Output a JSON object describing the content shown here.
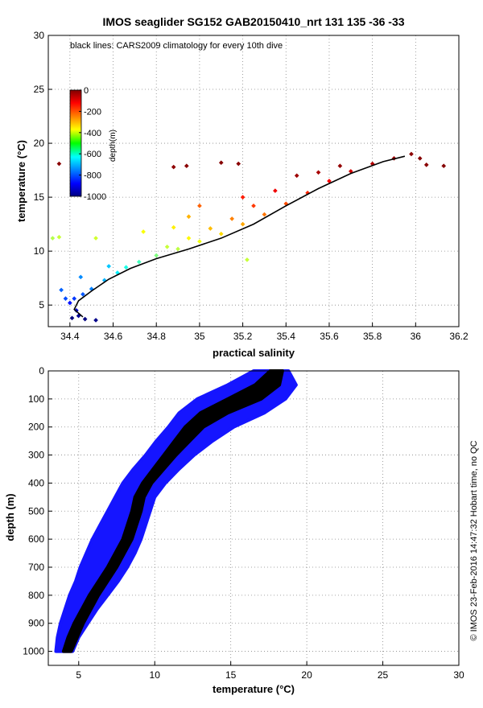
{
  "figure": {
    "title": "IMOS seaglider SG152 GAB20150410_nrt 131  135  -36  -33",
    "footer": "© IMOS 23-Feb-2016 14:47:32 Hobart time, no QC"
  },
  "chart_data": [
    {
      "type": "scatter",
      "title": "IMOS seaglider SG152 GAB20150410_nrt 131  135  -36  -33",
      "annotation": "black lines: CARS2009 climatology for every 10th dive",
      "xlabel": "practical salinity",
      "ylabel": "temperature (°C)",
      "xlim": [
        34.3,
        36.2
      ],
      "ylim": [
        3,
        30
      ],
      "xticks": [
        34.4,
        34.6,
        34.8,
        35,
        35.2,
        35.4,
        35.6,
        35.8,
        36,
        36.2
      ],
      "xtick_labels": [
        "34.4",
        "34.6",
        "34.8",
        "35",
        "35.2",
        "35.4",
        "35.6",
        "35.8",
        "36",
        "36.2"
      ],
      "yticks": [
        5,
        10,
        15,
        20,
        25,
        30
      ],
      "ytick_labels": [
        "5",
        "10",
        "15",
        "20",
        "25",
        "30"
      ],
      "grid": true,
      "colorbar": {
        "label": "depth(m)",
        "ticks": [
          0,
          -200,
          -400,
          -600,
          -800,
          -1000
        ],
        "tick_labels": [
          "0",
          "-200",
          "-400",
          "-600",
          "-800",
          "-1000"
        ],
        "range": [
          -1000,
          0
        ],
        "colormap": "jet",
        "placement": "top-left"
      },
      "series": [
        {
          "name": "",
          "color": "by-depth",
          "points": [
            {
              "s": 34.41,
              "t": 3.8,
              "d": -1000
            },
            {
              "s": 34.44,
              "t": 4.0,
              "d": -980
            },
            {
              "s": 34.47,
              "t": 3.7,
              "d": -1000
            },
            {
              "s": 34.52,
              "t": 3.6,
              "d": -990
            },
            {
              "s": 34.43,
              "t": 4.5,
              "d": -920
            },
            {
              "s": 34.4,
              "t": 5.2,
              "d": -860
            },
            {
              "s": 34.42,
              "t": 5.6,
              "d": -820
            },
            {
              "s": 34.46,
              "t": 6.0,
              "d": -790
            },
            {
              "s": 34.5,
              "t": 6.5,
              "d": -750
            },
            {
              "s": 34.56,
              "t": 7.3,
              "d": -700
            },
            {
              "s": 34.62,
              "t": 8.0,
              "d": -640
            },
            {
              "s": 34.66,
              "t": 8.5,
              "d": -600
            },
            {
              "s": 34.72,
              "t": 9.0,
              "d": -560
            },
            {
              "s": 34.8,
              "t": 9.6,
              "d": -500
            },
            {
              "s": 34.9,
              "t": 10.2,
              "d": -440
            },
            {
              "s": 35.0,
              "t": 10.9,
              "d": -390
            },
            {
              "s": 35.1,
              "t": 11.6,
              "d": -340
            },
            {
              "s": 35.2,
              "t": 12.5,
              "d": -290
            },
            {
              "s": 35.3,
              "t": 13.4,
              "d": -240
            },
            {
              "s": 35.4,
              "t": 14.4,
              "d": -200
            },
            {
              "s": 35.5,
              "t": 15.4,
              "d": -160
            },
            {
              "s": 35.6,
              "t": 16.5,
              "d": -120
            },
            {
              "s": 35.7,
              "t": 17.4,
              "d": -80
            },
            {
              "s": 35.8,
              "t": 18.1,
              "d": -50
            },
            {
              "s": 35.9,
              "t": 18.6,
              "d": -30
            },
            {
              "s": 35.98,
              "t": 19.0,
              "d": -10
            },
            {
              "s": 36.02,
              "t": 18.6,
              "d": -5
            },
            {
              "s": 35.55,
              "t": 17.3,
              "d": -40
            },
            {
              "s": 35.65,
              "t": 17.9,
              "d": -20
            },
            {
              "s": 35.45,
              "t": 17.0,
              "d": -30
            },
            {
              "s": 35.35,
              "t": 15.6,
              "d": -110
            },
            {
              "s": 35.25,
              "t": 14.2,
              "d": -180
            },
            {
              "s": 35.15,
              "t": 13.0,
              "d": -250
            },
            {
              "s": 35.05,
              "t": 12.1,
              "d": -310
            },
            {
              "s": 34.95,
              "t": 11.2,
              "d": -370
            },
            {
              "s": 34.85,
              "t": 10.4,
              "d": -430
            },
            {
              "s": 34.38,
              "t": 5.6,
              "d": -800
            },
            {
              "s": 34.36,
              "t": 6.4,
              "d": -780
            },
            {
              "s": 34.45,
              "t": 7.6,
              "d": -740
            },
            {
              "s": 34.58,
              "t": 8.6,
              "d": -680
            },
            {
              "s": 34.32,
              "t": 11.2,
              "d": -450
            },
            {
              "s": 34.35,
              "t": 11.3,
              "d": -430
            },
            {
              "s": 34.52,
              "t": 11.2,
              "d": -420
            },
            {
              "s": 34.88,
              "t": 12.2,
              "d": -360
            },
            {
              "s": 35.22,
              "t": 9.2,
              "d": -430
            },
            {
              "s": 34.74,
              "t": 11.8,
              "d": -380
            },
            {
              "s": 34.95,
              "t": 13.2,
              "d": -300
            },
            {
              "s": 35.0,
              "t": 14.2,
              "d": -220
            },
            {
              "s": 35.2,
              "t": 15.0,
              "d": -150
            },
            {
              "s": 34.35,
              "t": 18.1,
              "d": -10
            },
            {
              "s": 34.94,
              "t": 17.9,
              "d": -10
            },
            {
              "s": 35.1,
              "t": 18.2,
              "d": -5
            },
            {
              "s": 35.18,
              "t": 18.1,
              "d": -10
            },
            {
              "s": 36.05,
              "t": 18.0,
              "d": -10
            },
            {
              "s": 36.13,
              "t": 17.9,
              "d": -5
            },
            {
              "s": 34.88,
              "t": 17.8,
              "d": -15
            }
          ]
        },
        {
          "name": "",
          "color": "#000000",
          "points": [
            {
              "s": 34.46,
              "t": 3.9
            },
            {
              "s": 34.42,
              "t": 4.6
            },
            {
              "s": 34.44,
              "t": 5.4
            },
            {
              "s": 34.5,
              "t": 6.3
            },
            {
              "s": 34.58,
              "t": 7.4
            },
            {
              "s": 34.68,
              "t": 8.4
            },
            {
              "s": 34.8,
              "t": 9.3
            },
            {
              "s": 34.95,
              "t": 10.2
            },
            {
              "s": 35.1,
              "t": 11.2
            },
            {
              "s": 35.25,
              "t": 12.5
            },
            {
              "s": 35.4,
              "t": 14.2
            },
            {
              "s": 35.55,
              "t": 15.8
            },
            {
              "s": 35.7,
              "t": 17.2
            },
            {
              "s": 35.85,
              "t": 18.3
            },
            {
              "s": 35.95,
              "t": 18.8
            }
          ]
        }
      ]
    },
    {
      "type": "scatter",
      "xlabel": "temperature (°C)",
      "ylabel": "depth (m)",
      "xlim": [
        3,
        30
      ],
      "ylim": [
        1050,
        0
      ],
      "xticks": [
        5,
        10,
        15,
        20,
        25,
        30
      ],
      "xtick_labels": [
        "5",
        "10",
        "15",
        "20",
        "25",
        "30"
      ],
      "yticks": [
        0,
        100,
        200,
        300,
        400,
        500,
        600,
        700,
        800,
        900,
        1000
      ],
      "ytick_labels": [
        "0",
        "100",
        "200",
        "300",
        "400",
        "500",
        "600",
        "700",
        "800",
        "900",
        "1000"
      ],
      "grid": true,
      "series": [
        {
          "name": "",
          "color": "#1515ff",
          "profile_min": [
            {
              "d": 0,
              "t": 16.5
            },
            {
              "d": 50,
              "t": 14.8
            },
            {
              "d": 100,
              "t": 12.8
            },
            {
              "d": 150,
              "t": 11.6
            },
            {
              "d": 200,
              "t": 10.9
            },
            {
              "d": 250,
              "t": 10.1
            },
            {
              "d": 300,
              "t": 9.4
            },
            {
              "d": 350,
              "t": 8.6
            },
            {
              "d": 400,
              "t": 7.9
            },
            {
              "d": 450,
              "t": 7.4
            },
            {
              "d": 500,
              "t": 6.9
            },
            {
              "d": 550,
              "t": 6.4
            },
            {
              "d": 600,
              "t": 5.9
            },
            {
              "d": 650,
              "t": 5.5
            },
            {
              "d": 700,
              "t": 5.1
            },
            {
              "d": 750,
              "t": 4.8
            },
            {
              "d": 800,
              "t": 4.4
            },
            {
              "d": 850,
              "t": 4.1
            },
            {
              "d": 900,
              "t": 3.8
            },
            {
              "d": 950,
              "t": 3.6
            },
            {
              "d": 1000,
              "t": 3.5
            }
          ],
          "profile_max": [
            {
              "d": 0,
              "t": 18.8
            },
            {
              "d": 50,
              "t": 19.3
            },
            {
              "d": 100,
              "t": 18.6
            },
            {
              "d": 150,
              "t": 17.2
            },
            {
              "d": 200,
              "t": 15.2
            },
            {
              "d": 250,
              "t": 13.8
            },
            {
              "d": 300,
              "t": 12.6
            },
            {
              "d": 350,
              "t": 11.6
            },
            {
              "d": 400,
              "t": 10.7
            },
            {
              "d": 450,
              "t": 10.0
            },
            {
              "d": 500,
              "t": 9.7
            },
            {
              "d": 550,
              "t": 9.4
            },
            {
              "d": 600,
              "t": 9.1
            },
            {
              "d": 650,
              "t": 8.7
            },
            {
              "d": 700,
              "t": 8.2
            },
            {
              "d": 750,
              "t": 7.6
            },
            {
              "d": 800,
              "t": 6.9
            },
            {
              "d": 850,
              "t": 6.2
            },
            {
              "d": 900,
              "t": 5.6
            },
            {
              "d": 950,
              "t": 5.0
            },
            {
              "d": 1000,
              "t": 4.6
            }
          ]
        },
        {
          "name": "",
          "color": "#000000",
          "profile_min": [
            {
              "d": 0,
              "t": 17.6
            },
            {
              "d": 50,
              "t": 16.6
            },
            {
              "d": 100,
              "t": 14.8
            },
            {
              "d": 150,
              "t": 13.0
            },
            {
              "d": 200,
              "t": 12.0
            },
            {
              "d": 250,
              "t": 11.3
            },
            {
              "d": 300,
              "t": 10.6
            },
            {
              "d": 350,
              "t": 9.9
            },
            {
              "d": 400,
              "t": 9.2
            },
            {
              "d": 450,
              "t": 8.7
            },
            {
              "d": 500,
              "t": 8.5
            },
            {
              "d": 550,
              "t": 8.2
            },
            {
              "d": 600,
              "t": 7.9
            },
            {
              "d": 650,
              "t": 7.4
            },
            {
              "d": 700,
              "t": 6.9
            },
            {
              "d": 750,
              "t": 6.3
            },
            {
              "d": 800,
              "t": 5.7
            },
            {
              "d": 850,
              "t": 5.2
            },
            {
              "d": 900,
              "t": 4.7
            },
            {
              "d": 950,
              "t": 4.3
            },
            {
              "d": 1000,
              "t": 4.0
            }
          ],
          "profile_max": [
            {
              "d": 0,
              "t": 18.4
            },
            {
              "d": 50,
              "t": 18.2
            },
            {
              "d": 100,
              "t": 17.0
            },
            {
              "d": 150,
              "t": 14.8
            },
            {
              "d": 200,
              "t": 13.2
            },
            {
              "d": 250,
              "t": 12.3
            },
            {
              "d": 300,
              "t": 11.4
            },
            {
              "d": 350,
              "t": 10.6
            },
            {
              "d": 400,
              "t": 9.8
            },
            {
              "d": 450,
              "t": 9.3
            },
            {
              "d": 500,
              "t": 9.1
            },
            {
              "d": 550,
              "t": 8.8
            },
            {
              "d": 600,
              "t": 8.5
            },
            {
              "d": 650,
              "t": 8.0
            },
            {
              "d": 700,
              "t": 7.5
            },
            {
              "d": 750,
              "t": 6.9
            },
            {
              "d": 800,
              "t": 6.3
            },
            {
              "d": 850,
              "t": 5.8
            },
            {
              "d": 900,
              "t": 5.3
            },
            {
              "d": 950,
              "t": 4.9
            },
            {
              "d": 1000,
              "t": 4.5
            }
          ]
        }
      ]
    }
  ]
}
